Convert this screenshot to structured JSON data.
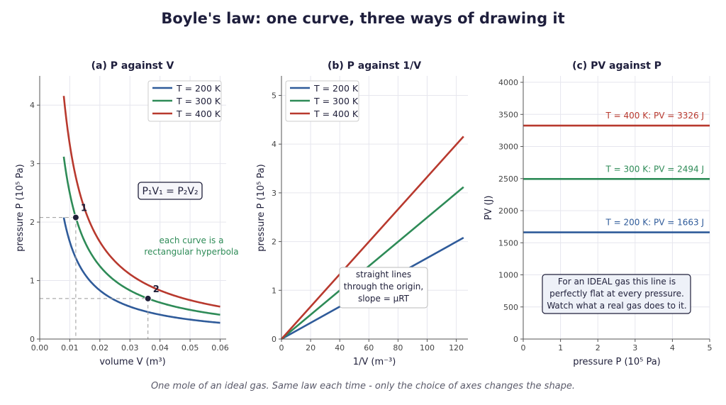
{
  "figure": {
    "title": "Boyle's law: one curve, three ways of drawing it",
    "caption": "One mole of an ideal gas. Same law each time - only the choice of axes changes the shape."
  },
  "colors": {
    "T200": "#2f5b9a",
    "T300": "#2e8b57",
    "T400": "#b8392e"
  },
  "chart_data": [
    {
      "type": "line",
      "title": "(a)  P against V",
      "xlabel": "volume  V   (m³)",
      "ylabel": "pressure  P   (10⁵ Pa)",
      "xlim": [
        0,
        0.062
      ],
      "ylim": [
        0,
        4.5
      ],
      "xticks": [
        0,
        0.01,
        0.02,
        0.03,
        0.04,
        0.05,
        0.06
      ],
      "xtick_labels": [
        "0.00",
        "0.01",
        "0.02",
        "0.03",
        "0.04",
        "0.05",
        "0.06"
      ],
      "yticks": [
        0,
        1,
        2,
        3,
        4
      ],
      "grid": true,
      "legend": "top-right",
      "series": [
        {
          "name": "T = 200 K",
          "PV": 1663,
          "x_range": [
            0.008,
            0.06
          ]
        },
        {
          "name": "T = 300 K",
          "PV": 2494,
          "x_range": [
            0.008,
            0.06
          ]
        },
        {
          "name": "T = 400 K",
          "PV": 3326,
          "x_range": [
            0.008,
            0.06
          ]
        }
      ],
      "points": [
        {
          "label": "1",
          "x": 0.012,
          "y": 2.079
        },
        {
          "label": "2",
          "x": 0.036,
          "y": 0.693
        }
      ],
      "annotations": {
        "equation": "P₁V₁ = P₂V₂",
        "hyperbola_line1": "each curve is a",
        "hyperbola_line2": "rectangular hyperbola"
      }
    },
    {
      "type": "line",
      "title": "(b)  P against 1/V",
      "xlabel": "1/V   (m⁻³)",
      "ylabel": "pressure  P   (10⁵ Pa)",
      "xlim": [
        0,
        128
      ],
      "ylim": [
        0,
        5.4
      ],
      "xticks": [
        0,
        20,
        40,
        60,
        80,
        100,
        120
      ],
      "yticks": [
        0,
        1,
        2,
        3,
        4,
        5
      ],
      "grid": true,
      "legend": "top-left",
      "series": [
        {
          "name": "T = 200 K",
          "x": [
            0,
            125
          ],
          "y": [
            0,
            2.079
          ]
        },
        {
          "name": "T = 300 K",
          "x": [
            0,
            125
          ],
          "y": [
            0,
            3.118
          ]
        },
        {
          "name": "T = 400 K",
          "x": [
            0,
            125
          ],
          "y": [
            0,
            4.157
          ]
        }
      ],
      "annotations": {
        "line1": "straight lines",
        "line2": "through the origin,",
        "line3": "slope  = μRT"
      }
    },
    {
      "type": "line",
      "title": "(c)  PV against P",
      "xlabel": "pressure  P   (10⁵ Pa)",
      "ylabel": "PV   (J)",
      "xlim": [
        0,
        5
      ],
      "ylim": [
        0,
        4100
      ],
      "xticks": [
        0,
        1,
        2,
        3,
        4,
        5
      ],
      "yticks": [
        0,
        500,
        1000,
        1500,
        2000,
        2500,
        3000,
        3500,
        4000
      ],
      "grid": true,
      "series": [
        {
          "name": "T = 200 K",
          "label": "T = 200 K:  PV = 1663 J",
          "x": [
            0,
            5
          ],
          "y": [
            1663,
            1663
          ]
        },
        {
          "name": "T = 300 K",
          "label": "T = 300 K:  PV = 2494 J",
          "x": [
            0,
            5
          ],
          "y": [
            2494,
            2494
          ]
        },
        {
          "name": "T = 400 K",
          "label": "T = 400 K:  PV = 3326 J",
          "x": [
            0,
            5
          ],
          "y": [
            3326,
            3326
          ]
        }
      ],
      "annotations": {
        "line1": "For an IDEAL gas this line is",
        "line2": "perfectly flat at every pressure.",
        "line3": "Watch what a real gas does to it."
      }
    }
  ]
}
